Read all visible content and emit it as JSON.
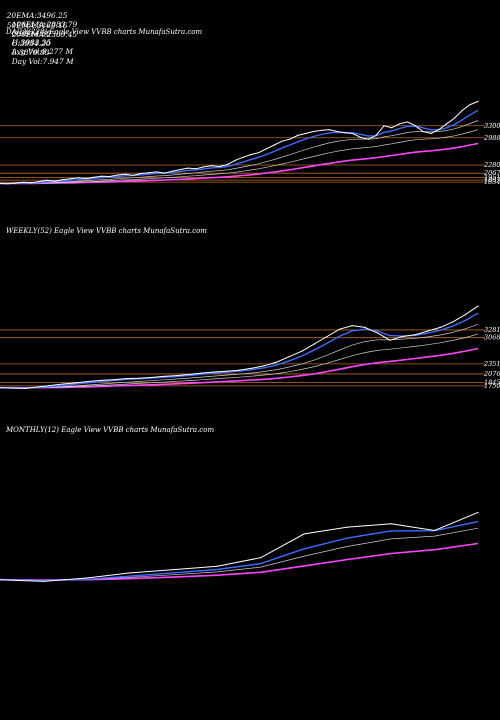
{
  "header": {
    "row1": [
      {
        "label": "20EMA:",
        "value": "3496.25"
      },
      {
        "label": "100EMA:",
        "value": "2883.79"
      },
      {
        "label": "O:",
        "value": "3914.36"
      },
      {
        "label": "H:",
        "value": "3983.35"
      },
      {
        "label": "Avg Vol:",
        "value": "9.277 M"
      }
    ],
    "row2": [
      {
        "label": "50EMA:",
        "value": "3169.16"
      },
      {
        "label": "200EMA:",
        "value": "2369.45"
      },
      {
        "label": "C:",
        "value": "3934.20"
      },
      {
        "label": "L:",
        "value": "3879.93"
      },
      {
        "label": "Day Vol:",
        "value": "7.947 M"
      }
    ]
  },
  "panels": [
    {
      "label": "DAILY(228) Eagle  View VVBB charts MunafaSutra.com",
      "levels": [
        "3300",
        "2988",
        "2280",
        "2067",
        "1951",
        "1887",
        "1834"
      ]
    },
    {
      "label": "WEEKLY(52) Eagle  View VVBB charts MunafaSutra.com",
      "levels": [
        "3281",
        "3068",
        "2351",
        "2076",
        "1845",
        "1750"
      ]
    },
    {
      "label": "MONTHLY(12) Eagle  View VVBB charts MunafaSutra.com",
      "levels": []
    }
  ],
  "colors": {
    "price": "#ffffff",
    "ema_blue": "#3a6cff",
    "ema_pink": "#ff44ff",
    "level_line": "#b86a1a",
    "ema_gray": "#cccccc"
  },
  "chart_data": [
    {
      "type": "line",
      "title": "DAILY(228)",
      "price_ylim": [
        1500,
        4100
      ],
      "levels": [
        3300,
        2988,
        2280,
        2067,
        1951,
        1887,
        1834
      ],
      "series": [
        {
          "values": [
            1800,
            1790,
            1810,
            1830,
            1820,
            1850,
            1880,
            1860,
            1900,
            1920,
            1950,
            1930,
            1960,
            1990,
            1980,
            2020,
            2040,
            2010,
            2060,
            2080,
            2100,
            2070,
            2120,
            2160,
            2200,
            2180,
            2230,
            2260,
            2240,
            2290,
            2400,
            2480,
            2550,
            2600,
            2700,
            2800,
            2900,
            2950,
            3050,
            3100,
            3150,
            3180,
            3200,
            3150,
            3120,
            3100,
            3000,
            2950,
            3050,
            3300,
            3250,
            3350,
            3400,
            3300,
            3150,
            3100,
            3200,
            3350,
            3500,
            3700,
            3850,
            3934
          ]
        }
      ]
    },
    {
      "type": "line",
      "title": "WEEKLY(52)",
      "price_ylim": [
        1500,
        4100
      ],
      "levels": [
        3281,
        3068,
        2351,
        2076,
        1845,
        1750
      ],
      "series": [
        {
          "values": [
            1700,
            1690,
            1680,
            1720,
            1760,
            1800,
            1830,
            1870,
            1900,
            1920,
            1950,
            1960,
            1980,
            2010,
            2030,
            2060,
            2100,
            2130,
            2150,
            2180,
            2230,
            2300,
            2400,
            2550,
            2700,
            2900,
            3100,
            3300,
            3400,
            3350,
            3200,
            3000,
            3100,
            3150,
            3250,
            3350,
            3500,
            3700,
            3934
          ]
        }
      ]
    },
    {
      "type": "line",
      "title": "MONTHLY(12)",
      "price_ylim": [
        1500,
        4300
      ],
      "levels": [],
      "series": [
        {
          "values": [
            1950,
            1900,
            2000,
            2150,
            2250,
            2350,
            2600,
            3300,
            3500,
            3600,
            3400,
            3934
          ]
        }
      ]
    }
  ]
}
